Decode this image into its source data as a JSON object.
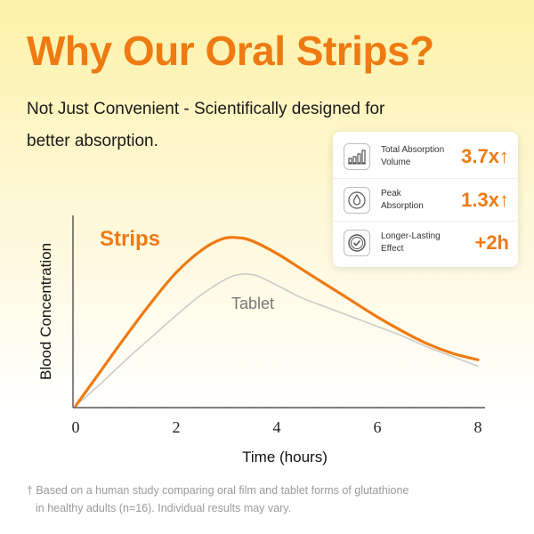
{
  "header": {
    "title": "Why Our Oral Strips?",
    "subtitle_line1": "Not Just Convenient - Scientifically designed for",
    "subtitle_line2": "better absorption."
  },
  "stats": [
    {
      "icon": "bar-chart-icon",
      "label_line1": "Total Absorption",
      "label_line2": "Volume",
      "value": "3.7x↑"
    },
    {
      "icon": "droplet-icon",
      "label_line1": "Peak",
      "label_line2": "Absorption",
      "value": "1.3x↑"
    },
    {
      "icon": "check-circle-icon",
      "label_line1": "Longer-Lasting",
      "label_line2": "Effect",
      "value": "+2h"
    }
  ],
  "colors": {
    "accent": "#ef7a12",
    "tablet_line": "#c8c8c8",
    "background_top": "#fdf2a8"
  },
  "chart_data": {
    "type": "line",
    "xlabel": "Time (hours)",
    "ylabel": "Blood Concentration",
    "xlim": [
      0,
      8
    ],
    "ylim": [
      0,
      1.2
    ],
    "x_ticks": [
      "0",
      "2",
      "4",
      "6",
      "8"
    ],
    "grid": false,
    "series": [
      {
        "name": "Strips",
        "color": "#ef7a12",
        "x": [
          0,
          0.5,
          1,
          1.5,
          2,
          2.5,
          2.9,
          3.2,
          3.5,
          4,
          4.5,
          5,
          5.5,
          6,
          6.5,
          7,
          7.5,
          8
        ],
        "y": [
          0,
          0.22,
          0.44,
          0.65,
          0.84,
          0.98,
          1.05,
          1.06,
          1.04,
          0.96,
          0.86,
          0.76,
          0.66,
          0.56,
          0.47,
          0.39,
          0.33,
          0.29
        ]
      },
      {
        "name": "Tablet",
        "color": "#c8c8c8",
        "x": [
          0,
          0.5,
          1,
          1.5,
          2,
          2.5,
          3,
          3.3,
          3.6,
          4,
          4.5,
          5,
          5.5,
          6,
          6.5,
          7,
          7.5,
          8
        ],
        "y": [
          0,
          0.14,
          0.29,
          0.43,
          0.57,
          0.7,
          0.8,
          0.83,
          0.82,
          0.76,
          0.68,
          0.62,
          0.56,
          0.5,
          0.44,
          0.37,
          0.31,
          0.25
        ]
      }
    ]
  },
  "footnote": {
    "line1": "† Based on a human study comparing oral film and tablet forms of glutathione",
    "line2": "in healthy adults (n=16). Individual results may vary."
  }
}
